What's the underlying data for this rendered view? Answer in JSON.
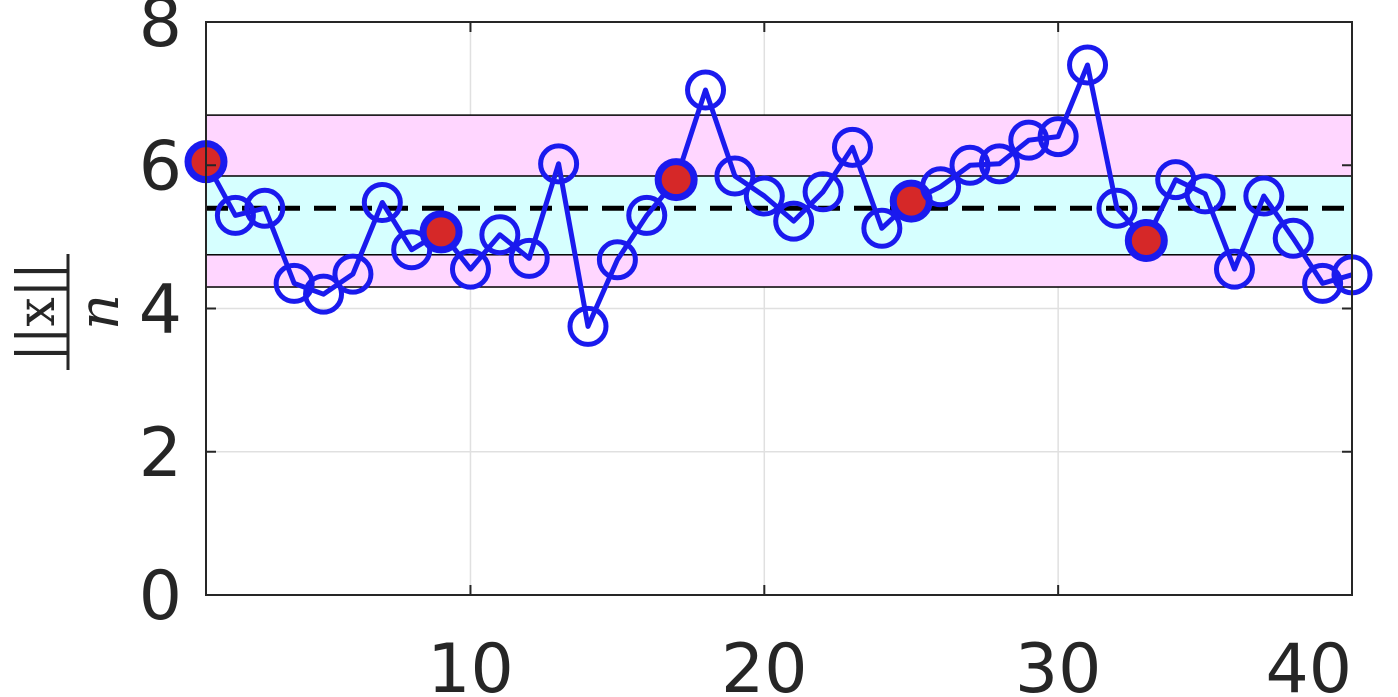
{
  "chart_data": {
    "type": "line",
    "ylabel_numerator": "||x||",
    "ylabel_denominator": "n",
    "xlim": [
      1,
      40
    ],
    "ylim": [
      0,
      8
    ],
    "xticks": [
      10,
      20,
      30,
      40
    ],
    "yticks": [
      0,
      2,
      4,
      6,
      8
    ],
    "grid": true,
    "mean_line": 5.4,
    "band_outer": [
      4.3,
      6.7
    ],
    "band_inner": [
      4.75,
      5.85
    ],
    "colors": {
      "series": "#1a1aee",
      "highlight_fill": "#d62828",
      "mean_line": "#000000",
      "band_outer": "#ffd6ff",
      "band_inner": "#d6ffff",
      "axis": "#262626",
      "grid": "#e0e0e0"
    },
    "series": [
      {
        "x": [
          1,
          2,
          3,
          4,
          5,
          6,
          7,
          8,
          9,
          10,
          11,
          12,
          13,
          14,
          15,
          16,
          17,
          18,
          19,
          20,
          21,
          22,
          23,
          24,
          25,
          26,
          27,
          28,
          29,
          30,
          31,
          32,
          33,
          34,
          35,
          36,
          37,
          38,
          39,
          40
        ],
        "values": [
          6.05,
          5.3,
          5.4,
          4.35,
          4.2,
          4.48,
          5.48,
          4.82,
          5.07,
          4.55,
          5.03,
          4.7,
          6.02,
          3.75,
          4.68,
          5.3,
          5.8,
          7.05,
          5.85,
          5.57,
          5.22,
          5.63,
          6.25,
          5.12,
          5.5,
          5.7,
          6.0,
          6.02,
          6.35,
          6.4,
          7.4,
          5.4,
          4.95,
          5.8,
          5.6,
          4.55,
          5.57,
          4.98,
          4.35,
          4.47
        ]
      }
    ],
    "highlighted_x": [
      1,
      9,
      17,
      25,
      33
    ]
  }
}
